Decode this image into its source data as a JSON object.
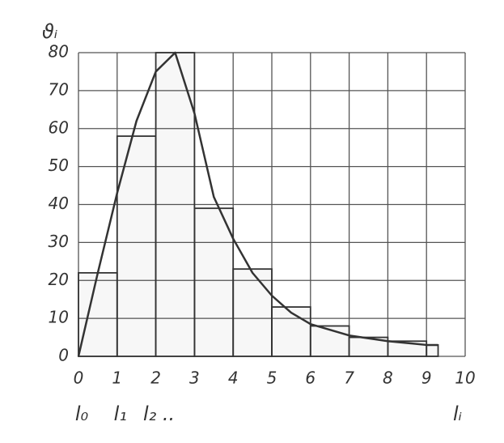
{
  "chart_data": {
    "type": "histogram",
    "y_label": "ϑᵢ",
    "x_label": "lᵢ",
    "annotations": [
      "l₀",
      "l₁",
      "l₂ .."
    ],
    "bins": [
      0,
      1,
      2,
      3,
      4,
      5,
      6,
      7,
      8,
      9,
      9.3
    ],
    "counts": [
      22,
      58,
      80,
      39,
      23,
      13,
      8,
      5,
      4,
      3
    ],
    "curve": {
      "x": [
        0,
        0.5,
        1,
        1.5,
        2,
        2.5,
        3,
        3.5,
        4,
        4.5,
        5,
        5.5,
        6,
        7,
        8,
        9,
        9.3
      ],
      "values": [
        0,
        22,
        43,
        62,
        75,
        80,
        64,
        42,
        31,
        22,
        16,
        11.5,
        8.5,
        5.5,
        4,
        3,
        3
      ]
    },
    "color": "#333333",
    "xlim": [
      0,
      10
    ],
    "xticks": [
      0,
      1,
      2,
      3,
      4,
      5,
      6,
      7,
      8,
      9,
      10
    ],
    "ylim": [
      0,
      80
    ],
    "yticks": [
      0,
      10,
      20,
      30,
      40,
      50,
      60,
      70,
      80
    ],
    "grid": true
  }
}
